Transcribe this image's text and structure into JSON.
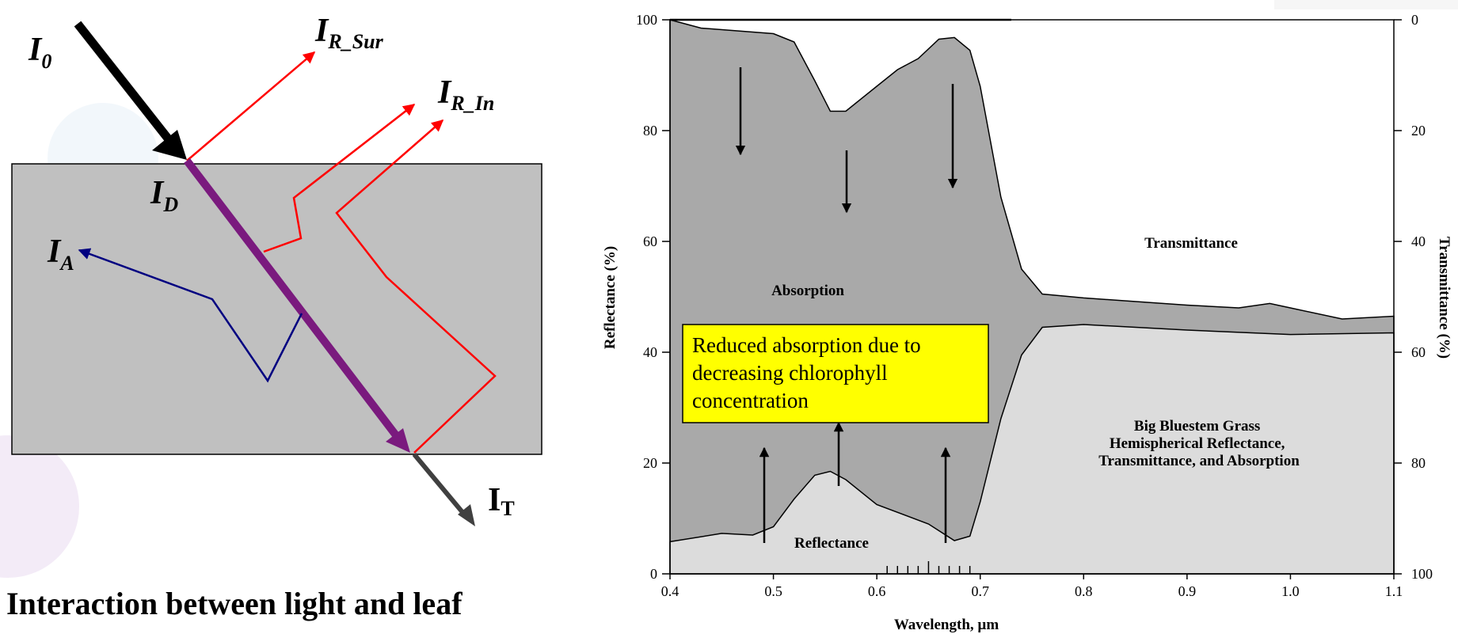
{
  "diagram": {
    "labels": {
      "incident": "I",
      "incident_sub": "0",
      "reflect_surface": "I",
      "reflect_surface_sub": "R_Sur",
      "reflect_internal": "I",
      "reflect_internal_sub": "R_In",
      "diffuse": "I",
      "diffuse_sub": "D",
      "absorbed": "I",
      "absorbed_sub": "A",
      "transmitted": "I",
      "transmitted_sub": "T"
    },
    "caption": "Interaction between light and leaf",
    "colors": {
      "leaf": "#c0c0c0",
      "reflect": "#ff0000",
      "absorb": "#000080",
      "diffuse": "#7a1a7e",
      "incident": "#000000",
      "transmit": "#404040"
    }
  },
  "chart_data": {
    "type": "area",
    "xlabel": "Wavelength, µm",
    "ylabel": "Reflectance (%)",
    "ylabel_right": "Transmittance (%)",
    "xlim": [
      0.4,
      1.1
    ],
    "ylim": [
      0,
      100
    ],
    "xticks": [
      "0.4",
      "0.5",
      "0.6",
      "0.7",
      "0.8",
      "0.9",
      "1.0",
      "1.1"
    ],
    "yticks": [
      "0",
      "20",
      "40",
      "60",
      "80",
      "100"
    ],
    "yticks_right": [
      "100",
      "80",
      "60",
      "40",
      "20",
      "0"
    ],
    "reflectance": {
      "x": [
        0.4,
        0.45,
        0.48,
        0.5,
        0.52,
        0.54,
        0.555,
        0.57,
        0.6,
        0.65,
        0.675,
        0.69,
        0.7,
        0.72,
        0.74,
        0.76,
        0.8,
        0.9,
        1.0,
        1.1
      ],
      "y": [
        5.8,
        7.3,
        7.0,
        8.5,
        13.5,
        17.8,
        18.5,
        17.0,
        12.5,
        9.0,
        6.0,
        6.8,
        13.0,
        28.0,
        39.5,
        44.5,
        45.0,
        44.0,
        43.2,
        43.5
      ]
    },
    "absorption_upper": {
      "x": [
        0.4,
        0.43,
        0.5,
        0.52,
        0.54,
        0.555,
        0.57,
        0.58,
        0.6,
        0.62,
        0.64,
        0.66,
        0.675,
        0.69,
        0.7,
        0.72,
        0.74,
        0.76,
        0.8,
        0.9,
        0.95,
        0.98,
        1.0,
        1.05,
        1.1
      ],
      "y": [
        100,
        98.5,
        97.5,
        96.0,
        89.0,
        83.5,
        83.5,
        85.0,
        88.0,
        91.0,
        93.0,
        96.5,
        96.8,
        94.5,
        88.0,
        68.0,
        55.0,
        50.5,
        49.8,
        48.5,
        48.0,
        48.8,
        48.0,
        46.0,
        46.5
      ]
    },
    "regions": {
      "transmittance": "Transmittance",
      "absorption": "Absorption",
      "reflectance": "Reflectance"
    },
    "annotation": "Big Bluestem Grass Hemispherical Reflectance, Transmittance, and Absorption",
    "annotation_lines": [
      "Big Bluestem Grass",
      "Hemispherical Reflectance,",
      "Transmittance, and Absorption"
    ],
    "callout_lines": [
      "Reduced absorption due to",
      "decreasing chlorophyll",
      "concentration"
    ],
    "colors": {
      "absorption": "#a9a9a9",
      "reflectance": "#dcdcdc",
      "transmittance": "#ffffff",
      "callout": "#ffff00"
    }
  }
}
